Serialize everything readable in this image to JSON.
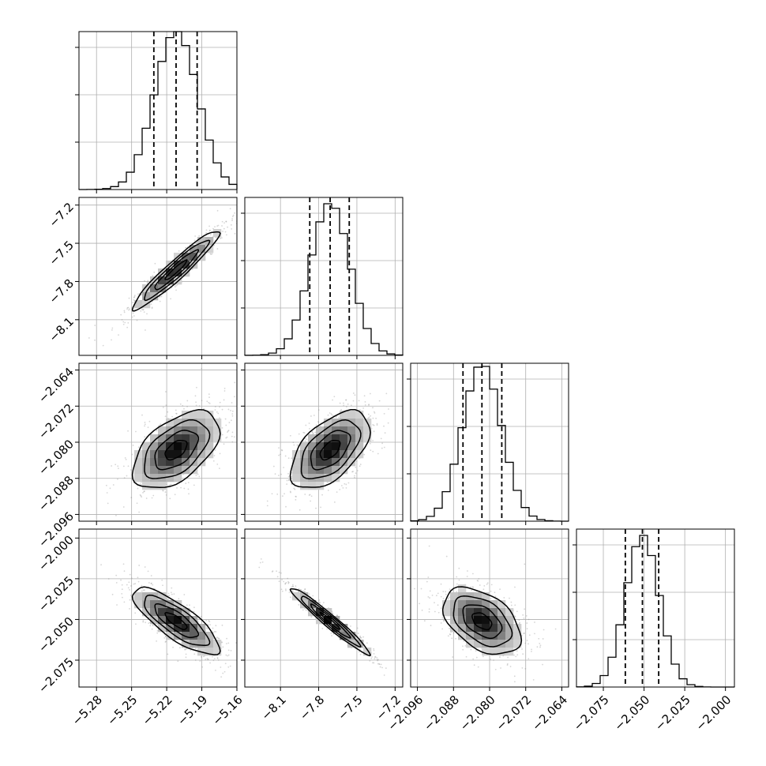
{
  "chart_data": {
    "type": "corner",
    "n_params": 4,
    "grid": true,
    "params": [
      {
        "range": [
          -5.295,
          -5.16
        ],
        "median": -5.212,
        "q16": -5.231,
        "q84": -5.194,
        "ticks": [
          -5.28,
          -5.25,
          -5.22,
          -5.19,
          -5.16
        ],
        "tick_labels": [
          "−5.28",
          "−5.25",
          "−5.22",
          "−5.19",
          "−5.16"
        ],
        "hist_top": 1.0
      },
      {
        "range": [
          -8.38,
          -7.14
        ],
        "median": -7.71,
        "q16": -7.87,
        "q84": -7.56,
        "ticks": [
          -8.1,
          -7.8,
          -7.5,
          -7.2
        ],
        "tick_labels": [
          "−8.1",
          "−7.8",
          "−7.5",
          "−7.2"
        ],
        "hist_top": 0.96
      },
      {
        "range": [
          -2.0975,
          -2.0625
        ],
        "median": -2.0817,
        "q16": -2.0859,
        "q84": -2.0773,
        "ticks": [
          -2.096,
          -2.088,
          -2.08,
          -2.072,
          -2.064
        ],
        "tick_labels": [
          "−2.096",
          "−2.088",
          "−2.080",
          "−2.072",
          "−2.064"
        ],
        "hist_top": 0.98
      },
      {
        "range": [
          -2.0915,
          -1.9945
        ],
        "median": -2.051,
        "q16": -2.0615,
        "q84": -2.041,
        "ticks": [
          -2.075,
          -2.05,
          -2.025,
          -2.0
        ],
        "tick_labels": [
          "−2.075",
          "−2.050",
          "−2.025",
          "−2.000"
        ],
        "hist_top": 0.96
      }
    ],
    "correlations": [
      [
        1.0,
        0.95,
        0.52,
        -0.8
      ],
      [
        0.95,
        1.0,
        0.55,
        -0.97
      ],
      [
        0.52,
        0.55,
        1.0,
        -0.45
      ],
      [
        -0.8,
        -0.97,
        -0.45,
        1.0
      ]
    ]
  }
}
